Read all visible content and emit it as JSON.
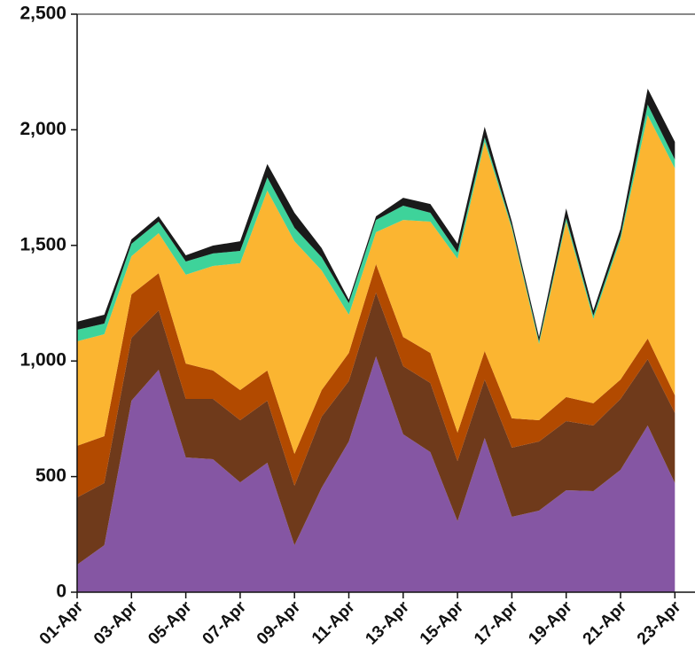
{
  "chart_data": {
    "type": "stacked_area",
    "categories": [
      "01-Apr",
      null,
      "03-Apr",
      null,
      "05-Apr",
      null,
      "07-Apr",
      null,
      "09-Apr",
      null,
      "11-Apr",
      null,
      "13-Apr",
      null,
      "15-Apr",
      null,
      "17-Apr",
      null,
      "19-Apr",
      null,
      "21-Apr",
      null,
      "23-Apr"
    ],
    "series": [
      {
        "color": "#8556a3",
        "values": [
          119,
          203,
          828,
          962,
          583,
          575,
          475,
          560,
          203,
          452,
          652,
          1020,
          683,
          606,
          307,
          667,
          326,
          353,
          441,
          437,
          529,
          721,
          472
        ]
      },
      {
        "color": "#6f3a1b",
        "values": [
          291,
          269,
          272,
          257,
          253,
          261,
          269,
          268,
          257,
          307,
          261,
          276,
          295,
          299,
          260,
          253,
          299,
          299,
          299,
          284,
          307,
          287,
          303
        ]
      },
      {
        "color": "#b24a00",
        "values": [
          223,
          203,
          188,
          161,
          153,
          123,
          130,
          131,
          138,
          115,
          122,
          123,
          126,
          130,
          123,
          123,
          127,
          92,
          104,
          96,
          84,
          89,
          76
        ]
      },
      {
        "color": "#fbb531",
        "values": [
          452,
          441,
          165,
          173,
          384,
          452,
          549,
          778,
          920,
          518,
          165,
          138,
          506,
          568,
          752,
          905,
          820,
          330,
          759,
          364,
          606,
          966,
          982
        ]
      },
      {
        "color": "#3ed39a",
        "values": [
          50,
          46,
          54,
          50,
          57,
          54,
          53,
          57,
          58,
          57,
          50,
          53,
          62,
          38,
          27,
          19,
          11,
          11,
          15,
          15,
          15,
          46,
          38
        ]
      },
      {
        "color": "#1a1a1a",
        "values": [
          35,
          38,
          19,
          23,
          27,
          34,
          42,
          58,
          65,
          39,
          15,
          16,
          34,
          38,
          38,
          46,
          20,
          19,
          42,
          23,
          31,
          69,
          77
        ]
      }
    ],
    "ylim": [
      0,
      2500
    ],
    "yticks": [
      0,
      500,
      {
        "value": 1000,
        "label": "1,000"
      },
      {
        "value": 1500,
        "label": "1,500"
      },
      {
        "value": 2000,
        "label": "2,000"
      },
      {
        "value": 2500,
        "label": "2,500"
      }
    ]
  }
}
